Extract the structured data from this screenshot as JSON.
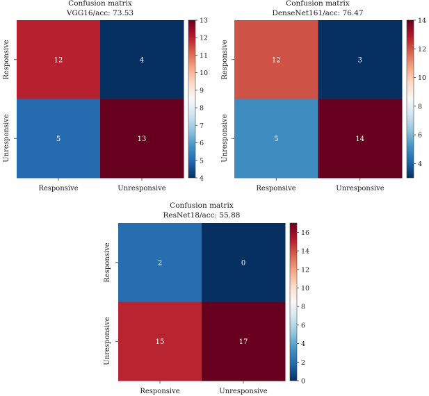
{
  "chart_data": [
    {
      "type": "heatmap",
      "title": "Confusion matrix",
      "subtitle": "VGG16/acc: 73.53",
      "x_labels": [
        "Responsive",
        "Unresponsive"
      ],
      "y_labels": [
        "Responsive",
        "Unresponsive"
      ],
      "values": [
        [
          12,
          4
        ],
        [
          5,
          13
        ]
      ],
      "colorbar_range": [
        4,
        13
      ],
      "colorbar_ticks": [
        4,
        5,
        6,
        7,
        8,
        9,
        10,
        11,
        12,
        13
      ],
      "colormap": "RdBu_r"
    },
    {
      "type": "heatmap",
      "title": "Confusion matrix",
      "subtitle": "DenseNet161/acc: 76.47",
      "x_labels": [
        "Responsive",
        "Unresponsive"
      ],
      "y_labels": [
        "Responsive",
        "Unresponsive"
      ],
      "values": [
        [
          12,
          3
        ],
        [
          5,
          14
        ]
      ],
      "colorbar_range": [
        3,
        14
      ],
      "colorbar_ticks": [
        4,
        6,
        8,
        10,
        12,
        14
      ],
      "colormap": "RdBu_r"
    },
    {
      "type": "heatmap",
      "title": "Confusion matrix",
      "subtitle": "ResNet18/acc: 55.88",
      "x_labels": [
        "Responsive",
        "Unresponsive"
      ],
      "y_labels": [
        "Responsive",
        "Unresponsive"
      ],
      "values": [
        [
          2,
          0
        ],
        [
          15,
          17
        ]
      ],
      "colorbar_range": [
        0,
        17
      ],
      "colorbar_ticks": [
        0,
        2,
        4,
        6,
        8,
        10,
        12,
        14,
        16
      ],
      "colormap": "RdBu_r"
    }
  ]
}
